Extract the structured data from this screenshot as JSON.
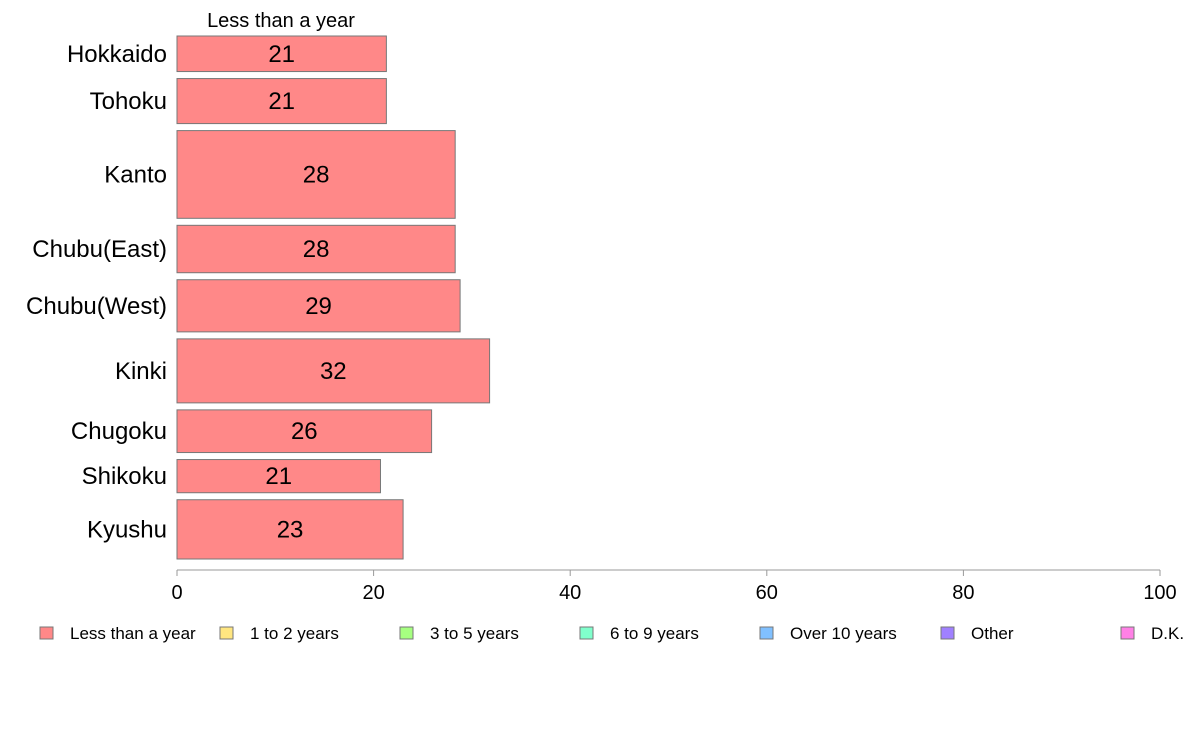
{
  "chart_data": {
    "type": "bar",
    "orientation": "horizontal",
    "stacked": true,
    "categories": [
      "Hokkaido",
      "Tohoku",
      "Kanto",
      "Chubu(East)",
      "Chubu(West)",
      "Kinki",
      "Chugoku",
      "Shikoku",
      "Kyushu"
    ],
    "bar_weights": [
      0.75,
      0.95,
      1.85,
      1.0,
      1.1,
      1.35,
      0.9,
      0.7,
      1.25
    ],
    "series": [
      {
        "name": "Less than a year",
        "color": "#ff8888",
        "values": [
          21.3,
          21.3,
          28.3,
          28.3,
          28.8,
          31.8,
          25.9,
          20.7,
          23.0
        ],
        "labels": [
          "21",
          "21",
          "28",
          "28",
          "29",
          "32",
          "26",
          "21",
          "23"
        ]
      }
    ],
    "series_header": "Less than a year",
    "legend": [
      {
        "name": "Less than a year",
        "color": "#ff8888"
      },
      {
        "name": "1 to 2 years",
        "color": "#ffe680"
      },
      {
        "name": "3 to 5 years",
        "color": "#a6ff80"
      },
      {
        "name": "6 to 9 years",
        "color": "#80ffcc"
      },
      {
        "name": "Over 10 years",
        "color": "#80c0ff"
      },
      {
        "name": "Other",
        "color": "#a080ff"
      },
      {
        "name": "D.K.",
        "color": "#ff80e6"
      }
    ],
    "legend_position": "bottom",
    "xlim": [
      0,
      100
    ],
    "xticks": [
      0,
      20,
      40,
      60,
      80,
      100
    ],
    "grid": false,
    "bar_border_color": "#777777",
    "axis_color": "#999999"
  }
}
